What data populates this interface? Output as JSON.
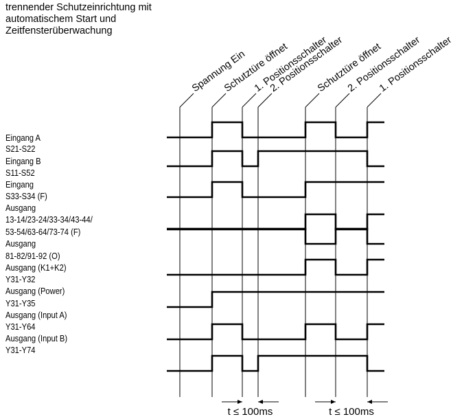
{
  "title_lines": [
    "trennender Schutzeinrichtung mit",
    "automatischem Start und",
    "Zeitfensterüberwachung"
  ],
  "events": [
    "Spannung Ein",
    "Schutztüre öffnet",
    "1. Positionsschalter",
    "2. Positionsschalter",
    "Schutztüre öffnet",
    "2. Positionsschalter",
    "1. Positionsschalter"
  ],
  "signal_labels": [
    "Eingang A",
    "S21-S22",
    "Eingang B",
    "S11-S52",
    "Eingang",
    "S33-S34 (F)",
    "Ausgang",
    "13-14/23-24/33-34/43-44/",
    "53-54/63-64/73-74 (F)",
    "Ausgang",
    "81-82/91-92 (O)",
    "Ausgang (K1+K2)",
    "Y31-Y32",
    "Ausgang (Power)",
    "Y31-Y35",
    "Ausgang (Input A)",
    "Y31-Y64",
    "Ausgang (Input B)",
    "Y31-Y74"
  ],
  "time_windows": [
    {
      "label": "t ≤ 100ms"
    },
    {
      "label": "t ≤ 100ms"
    }
  ],
  "signals": [
    {
      "name": "Eingang A S21-S22",
      "levels": [
        0,
        1,
        0,
        0,
        1,
        0,
        1
      ]
    },
    {
      "name": "Eingang B S11-S52",
      "levels": [
        0,
        1,
        0,
        1,
        1,
        1,
        0
      ]
    },
    {
      "name": "Eingang S33-S34 (F)",
      "levels": [
        0,
        1,
        0,
        0,
        1,
        1,
        1
      ]
    },
    {
      "name": "Ausgang 13-14/.../73-74 (F)",
      "levels": [
        0,
        0,
        0,
        0,
        1,
        0,
        1
      ]
    },
    {
      "name": "Ausgang 81-82/91-92 (O)",
      "levels": [
        1,
        1,
        1,
        1,
        0,
        1,
        0
      ]
    },
    {
      "name": "Ausgang (K1+K2) Y31-Y32",
      "levels": [
        0,
        0,
        0,
        0,
        1,
        0,
        1
      ]
    },
    {
      "name": "Ausgang (Power) Y31-Y35",
      "levels": [
        0,
        1,
        1,
        1,
        1,
        1,
        1
      ]
    },
    {
      "name": "Ausgang (Input A) Y31-Y64",
      "levels": [
        0,
        1,
        0,
        0,
        1,
        0,
        1
      ]
    },
    {
      "name": "Ausgang (Input B) Y31-Y74",
      "levels": [
        0,
        1,
        0,
        1,
        1,
        1,
        0
      ]
    }
  ]
}
